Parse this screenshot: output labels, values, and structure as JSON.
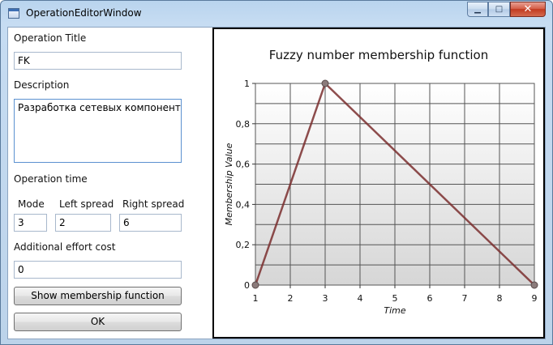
{
  "window": {
    "title": "OperationEditorWindow",
    "minimize_glyph": "▁",
    "maximize_glyph": "□",
    "close_glyph": "✕"
  },
  "form": {
    "operation_title_label": "Operation Title",
    "operation_title_value": "FK",
    "description_label": "Description",
    "description_value": "Разработка сетевых компонентов",
    "operation_time_label": "Operation time",
    "mode_label": "Mode",
    "mode_value": "3",
    "left_spread_label": "Left spread",
    "left_spread_value": "2",
    "right_spread_label": "Right spread",
    "right_spread_value": "6",
    "additional_effort_label": "Additional effort cost",
    "additional_effort_value": "0",
    "show_button_label": "Show membership function",
    "ok_button_label": "OK"
  },
  "chart_data": {
    "type": "line",
    "title": "Fuzzy number membership function",
    "xlabel": "Time",
    "ylabel": "Membership Value",
    "xlim": [
      1,
      9
    ],
    "ylim": [
      0,
      1
    ],
    "x_ticks": [
      "1",
      "2",
      "3",
      "4",
      "5",
      "6",
      "7",
      "8",
      "9"
    ],
    "y_ticks": [
      "0",
      "0,2",
      "0,4",
      "0,6",
      "0,8",
      "1"
    ],
    "grid": true,
    "x": [
      1,
      3,
      9
    ],
    "y": [
      0,
      1,
      0
    ],
    "line_color": "#7a2e2e",
    "marker_color": "#8b7b7b"
  }
}
